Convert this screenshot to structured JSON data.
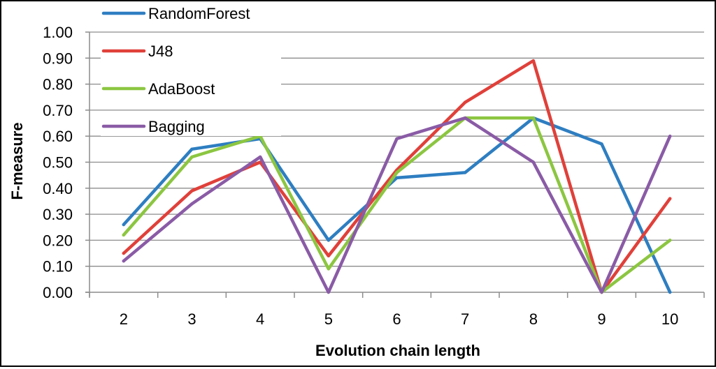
{
  "chart_data": {
    "type": "line",
    "title": "",
    "xlabel": "Evolution chain length",
    "ylabel": "F-measure",
    "ylim": [
      0,
      1
    ],
    "ytick_step": 0.1,
    "yticks": [
      "0.00",
      "0.10",
      "0.20",
      "0.30",
      "0.40",
      "0.50",
      "0.60",
      "0.70",
      "0.80",
      "0.90",
      "1.00"
    ],
    "categories": [
      "2",
      "3",
      "4",
      "5",
      "6",
      "7",
      "8",
      "9",
      "10"
    ],
    "grid": true,
    "legend_position": "top-left",
    "series": [
      {
        "name": "RandomForest",
        "color": "#2E7EC1",
        "values": [
          0.26,
          0.55,
          0.59,
          0.2,
          0.44,
          0.46,
          0.67,
          0.57,
          0.0
        ]
      },
      {
        "name": "J48",
        "color": "#E0403A",
        "values": [
          0.15,
          0.39,
          0.5,
          0.14,
          0.47,
          0.73,
          0.89,
          0.0,
          0.36
        ]
      },
      {
        "name": "AdaBoost",
        "color": "#8CC641",
        "values": [
          0.22,
          0.52,
          0.6,
          0.09,
          0.46,
          0.67,
          0.67,
          0.0,
          0.2
        ]
      },
      {
        "name": "Bagging",
        "color": "#8A5BA6",
        "values": [
          0.12,
          0.34,
          0.52,
          0.0,
          0.59,
          0.67,
          0.5,
          0.0,
          0.6
        ]
      }
    ]
  }
}
